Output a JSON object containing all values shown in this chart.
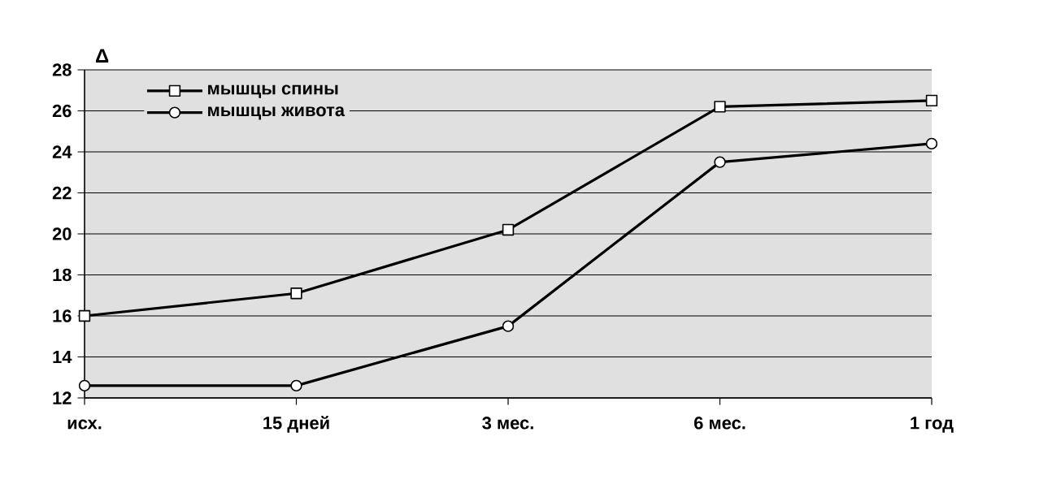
{
  "chart_data": {
    "type": "line",
    "ylabel": "Δ",
    "categories": [
      "исх.",
      "15 дней",
      "3 мес.",
      "6 мес.",
      "1 год"
    ],
    "series": [
      {
        "name": "мышцы спины",
        "color": "#000000",
        "marker": "square",
        "values": [
          16.0,
          17.1,
          20.2,
          26.2,
          26.5
        ]
      },
      {
        "name": "мышцы живота",
        "color": "#000000",
        "marker": "circle",
        "values": [
          12.6,
          12.6,
          15.5,
          23.5,
          24.4
        ]
      }
    ],
    "ylim": [
      12,
      28
    ],
    "yticks": [
      12,
      14,
      16,
      18,
      20,
      22,
      24,
      26,
      28
    ],
    "grid": "y",
    "legend": "top left",
    "line_style": "solid"
  }
}
